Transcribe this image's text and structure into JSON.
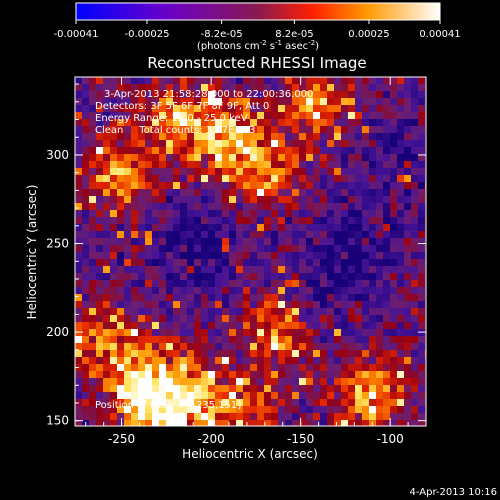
{
  "colorbar": {
    "tick_labels": [
      "-0.00041",
      "-0.00025",
      "-8.2e-05",
      "8.2e-05",
      "0.00025",
      "0.00041"
    ],
    "tick_values": [
      -0.00041,
      -0.00025,
      -8.2e-05,
      8.2e-05,
      0.00025,
      0.00041
    ],
    "range": [
      -0.00041,
      0.00041
    ],
    "units_main": "(photons cm",
    "units_exp1": "-2",
    "units_mid": " s",
    "units_exp2": "-1",
    "units_mid2": " asec",
    "units_exp3": "-2",
    "units_end": ")"
  },
  "annotations": {
    "line1": "3-Apr-2013 21:58:28.000 to 22:00:36.000",
    "line2": "Detectors: 3F 5F 6F 7F 8F 9F, Att 0",
    "line3": "Energy Range: 12.0 - 25.0 keV",
    "line4": "Clean     Total counts: 3.77E+03",
    "peak": "Position of Peak = [-235,151]"
  },
  "footer": {
    "date": "4-Apr-2013 10:16"
  },
  "chart_data": {
    "type": "heatmap",
    "title": "Reconstructed RHESSI Image",
    "xlabel": "Heliocentric X (arcsec)",
    "ylabel": "Heliocentric Y (arcsec)",
    "xlim": [
      -276,
      -80
    ],
    "ylim": [
      147,
      344
    ],
    "x_ticks": [
      -250,
      -200,
      -150,
      -100
    ],
    "y_ticks": [
      150,
      200,
      250,
      300
    ],
    "colormap": "blue-purple-red-yellow-white",
    "peak_position": [
      -235,
      151
    ],
    "bright_regions": [
      {
        "x": -250,
        "y": 290,
        "intensity": 0.9
      },
      {
        "x": -190,
        "y": 310,
        "intensity": 1.0
      },
      {
        "x": -140,
        "y": 330,
        "intensity": 0.9
      },
      {
        "x": -170,
        "y": 290,
        "intensity": 0.7
      },
      {
        "x": -220,
        "y": 320,
        "intensity": 0.8
      },
      {
        "x": -240,
        "y": 175,
        "intensity": 1.0
      },
      {
        "x": -210,
        "y": 165,
        "intensity": 0.9
      },
      {
        "x": -160,
        "y": 200,
        "intensity": 0.9
      },
      {
        "x": -110,
        "y": 165,
        "intensity": 1.0
      },
      {
        "x": -262,
        "y": 200,
        "intensity": 0.7
      },
      {
        "x": -230,
        "y": 150,
        "intensity": 0.9
      },
      {
        "x": -180,
        "y": 155,
        "intensity": 0.6
      }
    ],
    "dim_regions": [
      {
        "x": -210,
        "y": 250,
        "intensity": -0.6
      },
      {
        "x": -120,
        "y": 250,
        "intensity": -0.5
      },
      {
        "x": -100,
        "y": 300,
        "intensity": -0.3
      },
      {
        "x": -140,
        "y": 220,
        "intensity": -0.4
      }
    ]
  }
}
